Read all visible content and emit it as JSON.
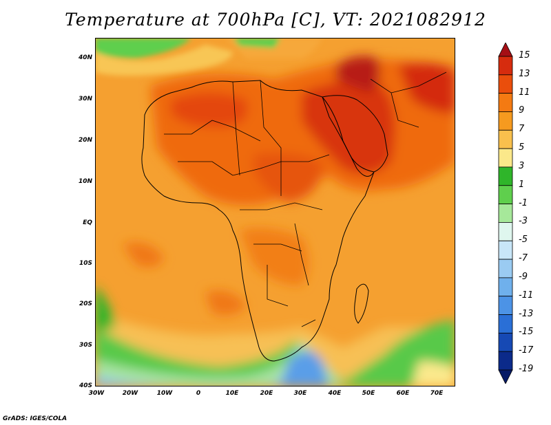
{
  "title": "Temperature at 700hPa [C], VT: 2021082912",
  "credit": "GrADS: IGES/COLA",
  "map": {
    "lat_labels": [
      "40N",
      "30N",
      "20N",
      "10N",
      "EQ",
      "10S",
      "20S",
      "30S",
      "40S"
    ],
    "lon_labels": [
      "30W",
      "20W",
      "10W",
      "0",
      "10E",
      "20E",
      "30E",
      "40E",
      "50E",
      "60E",
      "70E"
    ]
  },
  "colorbar": {
    "labels": [
      "15",
      "13",
      "11",
      "9",
      "7",
      "5",
      "3",
      "1",
      "-1",
      "-3",
      "-5",
      "-7",
      "-9",
      "-11",
      "-13",
      "-15",
      "-17",
      "-19"
    ],
    "colors": [
      "#a50f15",
      "#d62c0e",
      "#ea4e0c",
      "#f47a12",
      "#f69a1f",
      "#f9c04d",
      "#fbe88a",
      "#2fb52a",
      "#5fcf4d",
      "#a6e89a",
      "#dff6ee",
      "#c8e6f8",
      "#9acbf2",
      "#6fb0ec",
      "#4c93e6",
      "#2a6fd6",
      "#1649b4",
      "#0b2a8a",
      "#061a66"
    ]
  }
}
